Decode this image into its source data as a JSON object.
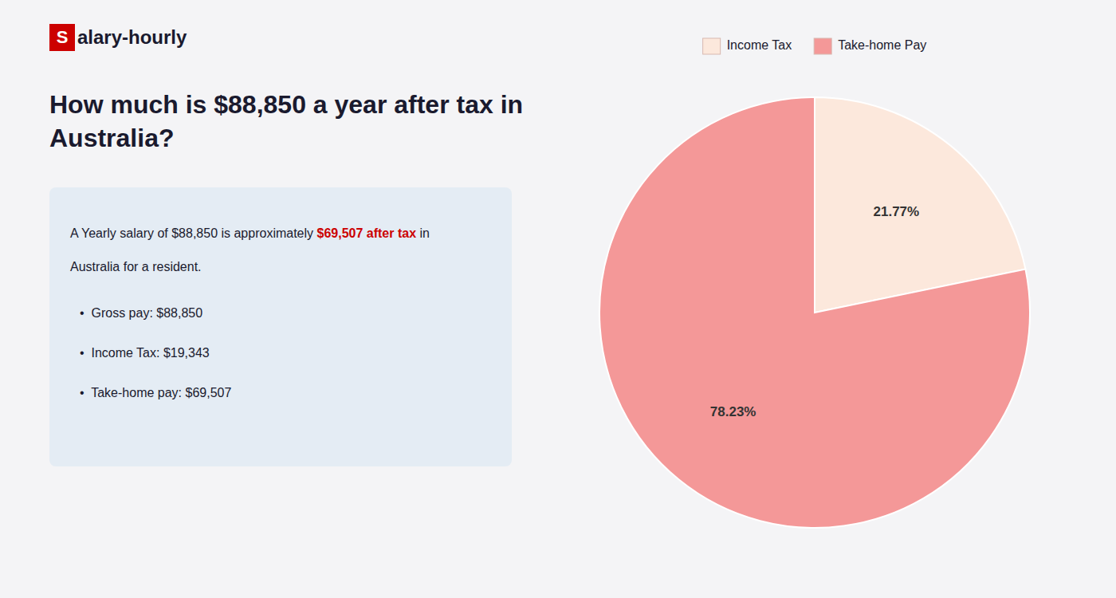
{
  "chart_data": {
    "type": "pie",
    "title": "How much is $88,850 a year after tax in Australia?",
    "categories": [
      "Income Tax",
      "Take-home Pay"
    ],
    "values": [
      21.77,
      78.23
    ],
    "value_labels": [
      "21.77%",
      "78.23%"
    ],
    "colors": [
      "#fce8dc",
      "#f49898"
    ],
    "data_labels": true,
    "legend": "top",
    "annotations": [
      "S",
      "alary-hourly",
      "A Yearly salary of $88,850 is approximately ",
      "$69,507 after tax",
      " in",
      "Australia for a resident.",
      "•  Gross pay: $88,850",
      "•  Income Tax: $19,343",
      "•  Take-home pay: $69,507"
    ]
  }
}
